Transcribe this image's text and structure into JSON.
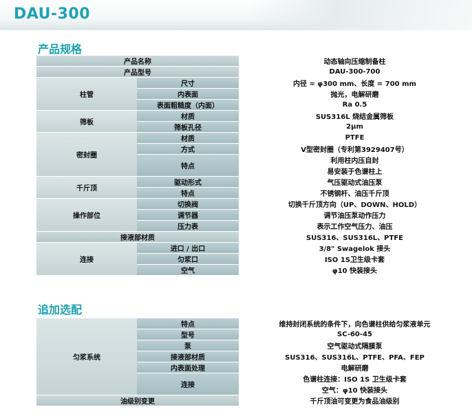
{
  "header": {
    "model_logo": "DAU-300"
  },
  "spec_section": {
    "title": "产品规格",
    "rows": [
      {
        "span": "full",
        "label": "产品名称",
        "value": "动态轴向压缩制备柱"
      },
      {
        "span": "full",
        "label": "产品型号",
        "value": "DAU-300-700"
      },
      {
        "group": "柱管",
        "label": "尺寸",
        "value": "内径 = φ300 mm、长度 = 700 mm"
      },
      {
        "group": "柱管",
        "label": "内表面",
        "value": "抛光，电解研磨"
      },
      {
        "group": "柱管",
        "label": "表面粗糙度（内面）",
        "value": "Ra 0.5"
      },
      {
        "group": "筛板",
        "label": "材质",
        "value": "SUS316L 烧结金属筛板"
      },
      {
        "group": "筛板",
        "label": "筛板孔径",
        "value": "2μm"
      },
      {
        "group": "密封圈",
        "label": "材质",
        "value": "PTFE"
      },
      {
        "group": "密封圈",
        "label": "方式",
        "value": "V型密封圈（专利第3929407号）"
      },
      {
        "group": "密封圈",
        "label": "特点",
        "value": "利用柱内压自封"
      },
      {
        "group": "密封圈",
        "label": "特点",
        "value": "易安装于色谱柱上"
      },
      {
        "group": "千斤顶",
        "label": "驱动形式",
        "value": "气压驱动式油压泵"
      },
      {
        "group": "千斤顶",
        "label": "特点",
        "value": "不锈钢杆、油压千斤顶"
      },
      {
        "group": "操作部位",
        "label": "切换阀",
        "value": "切换千斤顶方向（UP、DOWN、HOLD）"
      },
      {
        "group": "操作部位",
        "label": "调节器",
        "value": "调节油压泵动作压力"
      },
      {
        "group": "操作部位",
        "label": "压力表",
        "value": "表示工作空气压力、油压"
      },
      {
        "span": "full",
        "label": "接液部材质",
        "value": "SUS316、SUS316L、PTFE"
      },
      {
        "group": "连接",
        "label": "进口 / 出口",
        "value": "3/8\" Swagelok 接头"
      },
      {
        "group": "连接",
        "label": "匀浆口",
        "value": "ISO 1S卫生级卡套"
      },
      {
        "group": "连接",
        "label": "空气",
        "value": "φ10 快装接头"
      }
    ]
  },
  "options_section": {
    "title": "追加选配",
    "rows": [
      {
        "group": "匀浆系统",
        "label": "特点",
        "value": "维持封闭系统的条件下，向色谱柱供给匀浆液单元"
      },
      {
        "group": "匀浆系统",
        "label": "型号",
        "value": "SC-60-45"
      },
      {
        "group": "匀浆系统",
        "label": "泵",
        "value": "空气驱动式隔膜泵"
      },
      {
        "group": "匀浆系统",
        "label": "接液部材质",
        "value": "SUS316、SUS316L、PTFE、PFA、FEP"
      },
      {
        "group": "匀浆系统",
        "label": "内表面处理",
        "value": "电解研磨"
      },
      {
        "group": "匀浆系统",
        "label": "连接",
        "value": "色谱柱连接：ISO 1S 卫生级卡套"
      },
      {
        "group": "匀浆系统",
        "label": "连接",
        "value": "空气：φ10 快装接头"
      },
      {
        "span": "full",
        "label": "油级别变更",
        "value": "千斤顶油可变更为食品油级别"
      }
    ]
  }
}
